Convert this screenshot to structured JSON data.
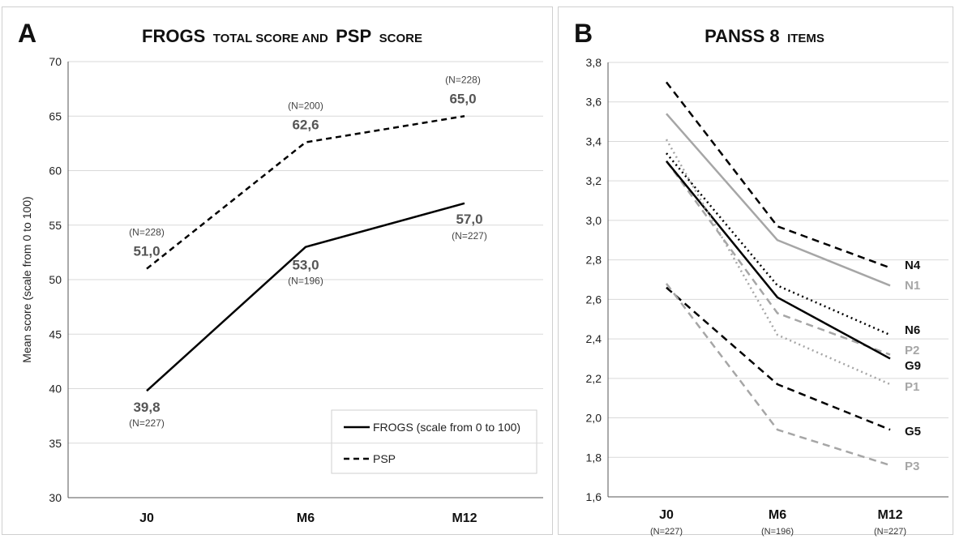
{
  "chart_data": [
    {
      "panel": "A",
      "type": "line",
      "title_main1": "FROGS",
      "title_small1": "TOTAL SCORE AND",
      "title_main2": "PSP",
      "title_small2": "SCORE",
      "ylabel": "Mean score (scale from 0 to 100)",
      "xlabel": "",
      "ylim": [
        30,
        70
      ],
      "yticks": [
        30,
        35,
        40,
        45,
        50,
        55,
        60,
        65,
        70
      ],
      "categories": [
        "J0",
        "M6",
        "M12"
      ],
      "grid": true,
      "legend_position": "bottom-right",
      "series": [
        {
          "name": "FROGS (scale from 0 to 100)",
          "style": "solid",
          "color": "#000000",
          "values": [
            39.8,
            53.0,
            57.0
          ],
          "value_labels": [
            "39,8",
            "53,0",
            "57,0"
          ],
          "n_labels": [
            "(N=227)",
            "(N=196)",
            "(N=227)"
          ]
        },
        {
          "name": "PSP",
          "style": "dashed",
          "color": "#000000",
          "values": [
            51.0,
            62.6,
            65.0
          ],
          "value_labels": [
            "51,0",
            "62,6",
            "65,0"
          ],
          "n_labels": [
            "(N=228)",
            "(N=200)",
            "(N=228)"
          ]
        }
      ]
    },
    {
      "panel": "B",
      "type": "line",
      "title_main": "PANSS 8",
      "title_small": "ITEMS",
      "ylabel": "",
      "xlabel": "",
      "ylim": [
        1.6,
        3.8
      ],
      "yticks": [
        "1,6",
        "1,8",
        "2,0",
        "2,2",
        "2,4",
        "2,6",
        "2,8",
        "3,0",
        "3,2",
        "3,4",
        "3,6",
        "3,8"
      ],
      "categories": [
        "J0",
        "M6",
        "M12"
      ],
      "category_n": [
        "(N=227)",
        "(N=196)",
        "(N=227)"
      ],
      "grid": true,
      "series": [
        {
          "name": "N4",
          "style": "dashed",
          "color": "#000000",
          "values": [
            3.7,
            2.97,
            2.76
          ]
        },
        {
          "name": "N1",
          "style": "solid",
          "color": "#a6a6a6",
          "values": [
            3.54,
            2.9,
            2.67
          ]
        },
        {
          "name": "N6",
          "style": "dotted",
          "color": "#000000",
          "values": [
            3.34,
            2.67,
            2.42
          ]
        },
        {
          "name": "P2",
          "style": "dashed",
          "color": "#a6a6a6",
          "values": [
            3.3,
            2.53,
            2.32
          ]
        },
        {
          "name": "G9",
          "style": "solid",
          "color": "#000000",
          "values": [
            3.3,
            2.61,
            2.3
          ]
        },
        {
          "name": "P1",
          "style": "dotted",
          "color": "#a6a6a6",
          "values": [
            3.41,
            2.42,
            2.17
          ]
        },
        {
          "name": "G5",
          "style": "dashed",
          "color": "#000000",
          "values": [
            2.66,
            2.17,
            1.94
          ]
        },
        {
          "name": "P3",
          "style": "dashed",
          "color": "#a6a6a6",
          "values": [
            2.68,
            1.94,
            1.76
          ]
        }
      ]
    }
  ]
}
